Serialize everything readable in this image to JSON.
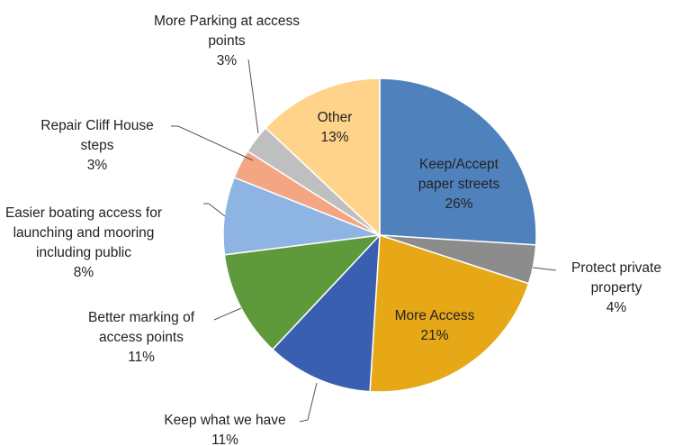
{
  "chart_data": {
    "type": "pie",
    "categories": [
      "Keep/Accept paper streets",
      "Protect private property",
      "More Access",
      "Keep what we have",
      "Better marking of access points",
      "Easier boating access for launching and mooring including public",
      "Repair Cliff House steps",
      "More Parking at access points",
      "Other"
    ],
    "values": [
      26,
      4,
      21,
      11,
      11,
      8,
      3,
      3,
      13
    ],
    "value_labels": [
      "26%",
      "4%",
      "21%",
      "11%",
      "11%",
      "8%",
      "3%",
      "3%",
      "13%"
    ],
    "colors": [
      "#4f81bd",
      "#8c8c8c",
      "#e6a817",
      "#3a5fb0",
      "#5e9a3c",
      "#8eb4e3",
      "#f4a582",
      "#bfbfbf",
      "#ffd48a"
    ]
  }
}
